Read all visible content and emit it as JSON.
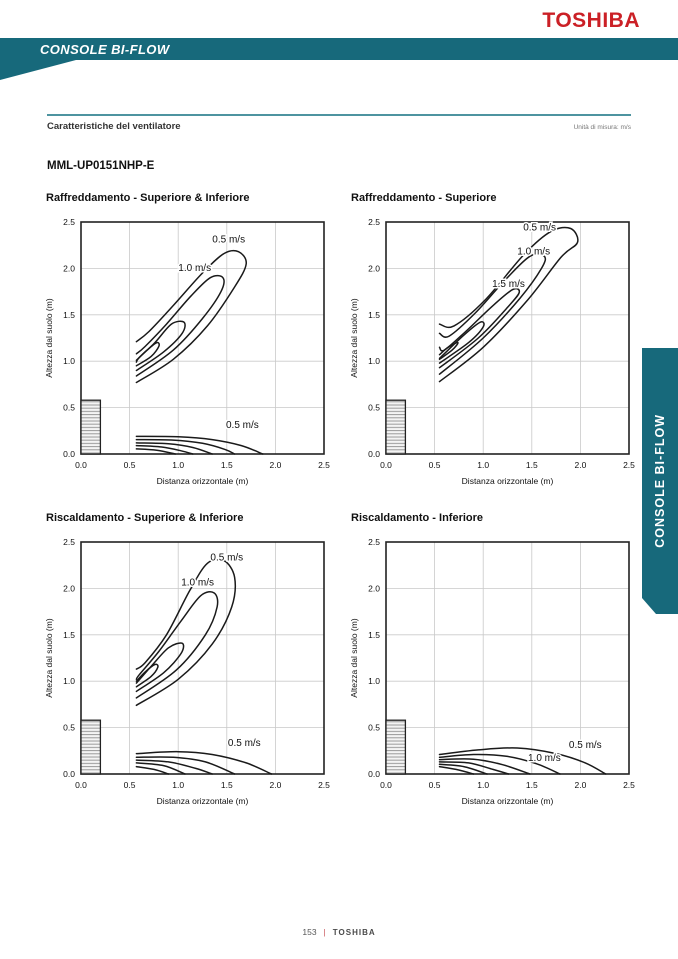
{
  "page": {
    "brand_logo": "TOSHIBA",
    "banner_title": "CONSOLE BI-FLOW",
    "section_heading": "Caratteristiche del ventilatore",
    "unit_note": "Unità di misura: m/s",
    "model": "MML-UP0151NHP-E",
    "side_tab_label": "CONSOLE BI-FLOW",
    "footer": {
      "page_number": "153",
      "separator": "|",
      "brand": "TOSHIBA"
    }
  },
  "colors": {
    "teal": "#17697B",
    "brand_red": "#CB2026",
    "grid": "#C9C9C9",
    "line": "#1A1A1A"
  },
  "chart_data": [
    {
      "type": "line",
      "subtype": "airflow-velocity-contours",
      "title": "Raffreddamento - Superiore & Inferiore",
      "xlabel": "Distanza orizzontale (m)",
      "ylabel": "Altezza dal suolo (m)",
      "xlim": [
        0,
        2.5
      ],
      "ylim": [
        0,
        2.5
      ],
      "xticks": [
        "0.0",
        "0.5",
        "1.0",
        "1.5",
        "2.0",
        "2.5"
      ],
      "yticks": [
        "0.0",
        "0.5",
        "1.0",
        "1.5",
        "2.0",
        "2.5"
      ],
      "grid": true,
      "unit_block": {
        "x": [
          0,
          0.2
        ],
        "y": [
          0,
          0.58
        ]
      },
      "contours": [
        {
          "label": "0.5 m/s",
          "label_pos": [
            1.52,
            2.28
          ],
          "points": [
            [
              0.57,
              0.77
            ],
            [
              0.95,
              1.02
            ],
            [
              1.3,
              1.38
            ],
            [
              1.58,
              1.8
            ],
            [
              1.7,
              2.05
            ],
            [
              1.62,
              2.18
            ],
            [
              1.47,
              2.16
            ],
            [
              1.24,
              1.94
            ],
            [
              0.95,
              1.6
            ],
            [
              0.7,
              1.32
            ],
            [
              0.57,
              1.21
            ]
          ]
        },
        {
          "label": "1.0 m/s",
          "label_pos": [
            1.17,
            1.97
          ],
          "points": [
            [
              0.57,
              0.84
            ],
            [
              0.95,
              1.12
            ],
            [
              1.25,
              1.46
            ],
            [
              1.44,
              1.75
            ],
            [
              1.46,
              1.9
            ],
            [
              1.33,
              1.9
            ],
            [
              1.13,
              1.7
            ],
            [
              0.88,
              1.4
            ],
            [
              0.66,
              1.16
            ],
            [
              0.57,
              1.08
            ]
          ]
        },
        {
          "label": null,
          "points": [
            [
              0.57,
              0.9
            ],
            [
              0.85,
              1.1
            ],
            [
              1.04,
              1.3
            ],
            [
              1.06,
              1.42
            ],
            [
              0.93,
              1.4
            ],
            [
              0.76,
              1.2
            ],
            [
              0.6,
              1.04
            ],
            [
              0.57,
              0.99
            ]
          ]
        },
        {
          "label": null,
          "points": [
            [
              0.57,
              0.95
            ],
            [
              0.72,
              1.05
            ],
            [
              0.8,
              1.16
            ],
            [
              0.78,
              1.2
            ],
            [
              0.68,
              1.12
            ],
            [
              0.57,
              1.01
            ]
          ]
        },
        {
          "label": "0.5 m/s",
          "label_pos": [
            1.66,
            0.28
          ],
          "points": [
            [
              0.57,
              0.19
            ],
            [
              1.0,
              0.185
            ],
            [
              1.35,
              0.155
            ],
            [
              1.65,
              0.09
            ],
            [
              1.87,
              0.0
            ]
          ]
        },
        {
          "label": null,
          "points": [
            [
              0.57,
              0.155
            ],
            [
              0.95,
              0.15
            ],
            [
              1.25,
              0.115
            ],
            [
              1.48,
              0.05
            ],
            [
              1.58,
              0.0
            ]
          ]
        },
        {
          "label": null,
          "points": [
            [
              0.57,
              0.12
            ],
            [
              0.9,
              0.11
            ],
            [
              1.15,
              0.07
            ],
            [
              1.35,
              0.0
            ]
          ]
        },
        {
          "label": null,
          "points": [
            [
              0.57,
              0.09
            ],
            [
              0.83,
              0.075
            ],
            [
              1.03,
              0.035
            ],
            [
              1.15,
              0.0
            ]
          ]
        },
        {
          "label": null,
          "points": [
            [
              0.57,
              0.055
            ],
            [
              0.78,
              0.04
            ],
            [
              0.97,
              0.0
            ]
          ]
        }
      ]
    },
    {
      "type": "line",
      "subtype": "airflow-velocity-contours",
      "title": "Raffreddamento - Superiore",
      "xlabel": "Distanza orizzontale (m)",
      "ylabel": "Altezza dal suolo (m)",
      "xlim": [
        0,
        2.5
      ],
      "ylim": [
        0,
        2.5
      ],
      "xticks": [
        "0.0",
        "0.5",
        "1.0",
        "1.5",
        "2.0",
        "2.5"
      ],
      "yticks": [
        "0.0",
        "0.5",
        "1.0",
        "1.5",
        "2.0",
        "2.5"
      ],
      "grid": true,
      "unit_block": {
        "x": [
          0,
          0.2
        ],
        "y": [
          0,
          0.58
        ]
      },
      "contours": [
        {
          "label": "0.5 m/s",
          "label_pos": [
            1.58,
            2.41
          ],
          "points": [
            [
              0.55,
              0.78
            ],
            [
              1.0,
              1.15
            ],
            [
              1.45,
              1.65
            ],
            [
              1.8,
              2.12
            ],
            [
              1.97,
              2.28
            ],
            [
              1.9,
              2.43
            ],
            [
              1.7,
              2.4
            ],
            [
              1.42,
              2.15
            ],
            [
              1.02,
              1.66
            ],
            [
              0.7,
              1.38
            ],
            [
              0.55,
              1.4
            ]
          ]
        },
        {
          "label": "1.0 m/s",
          "label_pos": [
            1.52,
            2.15
          ],
          "points": [
            [
              0.55,
              0.86
            ],
            [
              1.0,
              1.25
            ],
            [
              1.38,
              1.68
            ],
            [
              1.6,
              2.0
            ],
            [
              1.63,
              2.13
            ],
            [
              1.48,
              2.13
            ],
            [
              1.23,
              1.88
            ],
            [
              0.92,
              1.52
            ],
            [
              0.65,
              1.27
            ],
            [
              0.55,
              1.3
            ]
          ]
        },
        {
          "label": "1.5 m/s",
          "label_pos": [
            1.26,
            1.8
          ],
          "points": [
            [
              0.55,
              0.93
            ],
            [
              0.95,
              1.25
            ],
            [
              1.25,
              1.58
            ],
            [
              1.37,
              1.74
            ],
            [
              1.3,
              1.77
            ],
            [
              1.08,
              1.58
            ],
            [
              0.82,
              1.32
            ],
            [
              0.6,
              1.12
            ],
            [
              0.55,
              1.15
            ]
          ]
        },
        {
          "label": null,
          "points": [
            [
              0.55,
              0.98
            ],
            [
              0.85,
              1.2
            ],
            [
              1.0,
              1.37
            ],
            [
              0.97,
              1.42
            ],
            [
              0.8,
              1.28
            ],
            [
              0.58,
              1.06
            ],
            [
              0.55,
              1.03
            ]
          ]
        },
        {
          "label": null,
          "points": [
            [
              0.55,
              1.02
            ],
            [
              0.68,
              1.12
            ],
            [
              0.74,
              1.2
            ],
            [
              0.64,
              1.15
            ],
            [
              0.55,
              1.07
            ]
          ]
        }
      ]
    },
    {
      "type": "line",
      "subtype": "airflow-velocity-contours",
      "title": "Riscaldamento - Superiore & Inferiore",
      "xlabel": "Distanza orizzontale (m)",
      "ylabel": "Altezza dal suolo (m)",
      "xlim": [
        0,
        2.5
      ],
      "ylim": [
        0,
        2.5
      ],
      "xticks": [
        "0.0",
        "0.5",
        "1.0",
        "1.5",
        "2.0",
        "2.5"
      ],
      "yticks": [
        "0.0",
        "0.5",
        "1.0",
        "1.5",
        "2.0",
        "2.5"
      ],
      "grid": true,
      "unit_block": {
        "x": [
          0,
          0.2
        ],
        "y": [
          0,
          0.58
        ]
      },
      "contours": [
        {
          "label": "0.5 m/s",
          "label_pos": [
            1.5,
            2.3
          ],
          "points": [
            [
              0.57,
              0.74
            ],
            [
              1.0,
              1.02
            ],
            [
              1.35,
              1.4
            ],
            [
              1.55,
              1.8
            ],
            [
              1.58,
              2.12
            ],
            [
              1.47,
              2.3
            ],
            [
              1.3,
              2.27
            ],
            [
              1.12,
              1.98
            ],
            [
              0.88,
              1.5
            ],
            [
              0.66,
              1.2
            ],
            [
              0.57,
              1.13
            ]
          ]
        },
        {
          "label": "1.0 m/s",
          "label_pos": [
            1.2,
            2.03
          ],
          "points": [
            [
              0.57,
              0.82
            ],
            [
              0.98,
              1.12
            ],
            [
              1.28,
              1.5
            ],
            [
              1.4,
              1.8
            ],
            [
              1.37,
              1.95
            ],
            [
              1.23,
              1.92
            ],
            [
              1.03,
              1.65
            ],
            [
              0.8,
              1.32
            ],
            [
              0.6,
              1.07
            ],
            [
              0.57,
              1.02
            ]
          ]
        },
        {
          "label": null,
          "points": [
            [
              0.57,
              0.89
            ],
            [
              0.85,
              1.09
            ],
            [
              1.03,
              1.3
            ],
            [
              1.04,
              1.41
            ],
            [
              0.9,
              1.36
            ],
            [
              0.73,
              1.17
            ],
            [
              0.57,
              0.98
            ]
          ]
        },
        {
          "label": null,
          "points": [
            [
              0.57,
              0.94
            ],
            [
              0.72,
              1.05
            ],
            [
              0.79,
              1.15
            ],
            [
              0.76,
              1.18
            ],
            [
              0.66,
              1.1
            ],
            [
              0.57,
              1.0
            ]
          ]
        },
        {
          "label": "0.5 m/s",
          "label_pos": [
            1.68,
            0.3
          ],
          "points": [
            [
              0.57,
              0.22
            ],
            [
              1.0,
              0.24
            ],
            [
              1.35,
              0.21
            ],
            [
              1.7,
              0.12
            ],
            [
              1.96,
              0.0
            ]
          ]
        },
        {
          "label": null,
          "points": [
            [
              0.57,
              0.18
            ],
            [
              0.95,
              0.18
            ],
            [
              1.28,
              0.13
            ],
            [
              1.58,
              0.0
            ]
          ]
        },
        {
          "label": null,
          "points": [
            [
              0.57,
              0.15
            ],
            [
              0.9,
              0.13
            ],
            [
              1.18,
              0.06
            ],
            [
              1.35,
              0.0
            ]
          ]
        },
        {
          "label": null,
          "points": [
            [
              0.57,
              0.12
            ],
            [
              0.85,
              0.09
            ],
            [
              1.07,
              0.0
            ]
          ]
        },
        {
          "label": null,
          "points": [
            [
              0.57,
              0.08
            ],
            [
              0.75,
              0.05
            ],
            [
              0.9,
              0.0
            ]
          ]
        }
      ]
    },
    {
      "type": "line",
      "subtype": "airflow-velocity-contours",
      "title": "Riscaldamento - Inferiore",
      "xlabel": "Distanza orizzontale (m)",
      "ylabel": "Altezza dal suolo (m)",
      "xlim": [
        0,
        2.5
      ],
      "ylim": [
        0,
        2.5
      ],
      "xticks": [
        "0.0",
        "0.5",
        "1.0",
        "1.5",
        "2.0",
        "2.5"
      ],
      "yticks": [
        "0.0",
        "0.5",
        "1.0",
        "1.5",
        "2.0",
        "2.5"
      ],
      "grid": true,
      "unit_block": {
        "x": [
          0,
          0.2
        ],
        "y": [
          0,
          0.58
        ]
      },
      "contours": [
        {
          "label": "0.5 m/s",
          "label_pos": [
            2.05,
            0.28
          ],
          "points": [
            [
              0.55,
              0.21
            ],
            [
              0.95,
              0.26
            ],
            [
              1.35,
              0.28
            ],
            [
              1.75,
              0.22
            ],
            [
              2.05,
              0.12
            ],
            [
              2.26,
              0.0
            ]
          ]
        },
        {
          "label": "1.0 m/s",
          "label_pos": [
            1.63,
            0.14
          ],
          "points": [
            [
              0.55,
              0.18
            ],
            [
              0.9,
              0.21
            ],
            [
              1.25,
              0.19
            ],
            [
              1.55,
              0.11
            ],
            [
              1.79,
              0.0
            ]
          ]
        },
        {
          "label": null,
          "points": [
            [
              0.55,
              0.155
            ],
            [
              0.9,
              0.16
            ],
            [
              1.2,
              0.1
            ],
            [
              1.48,
              0.0
            ]
          ]
        },
        {
          "label": null,
          "points": [
            [
              0.55,
              0.13
            ],
            [
              0.85,
              0.12
            ],
            [
              1.1,
              0.05
            ],
            [
              1.26,
              0.0
            ]
          ]
        },
        {
          "label": null,
          "points": [
            [
              0.55,
              0.105
            ],
            [
              0.8,
              0.08
            ],
            [
              1.04,
              0.0
            ]
          ]
        },
        {
          "label": null,
          "points": [
            [
              0.55,
              0.08
            ],
            [
              0.72,
              0.05
            ],
            [
              0.9,
              0.0
            ]
          ]
        }
      ]
    }
  ]
}
